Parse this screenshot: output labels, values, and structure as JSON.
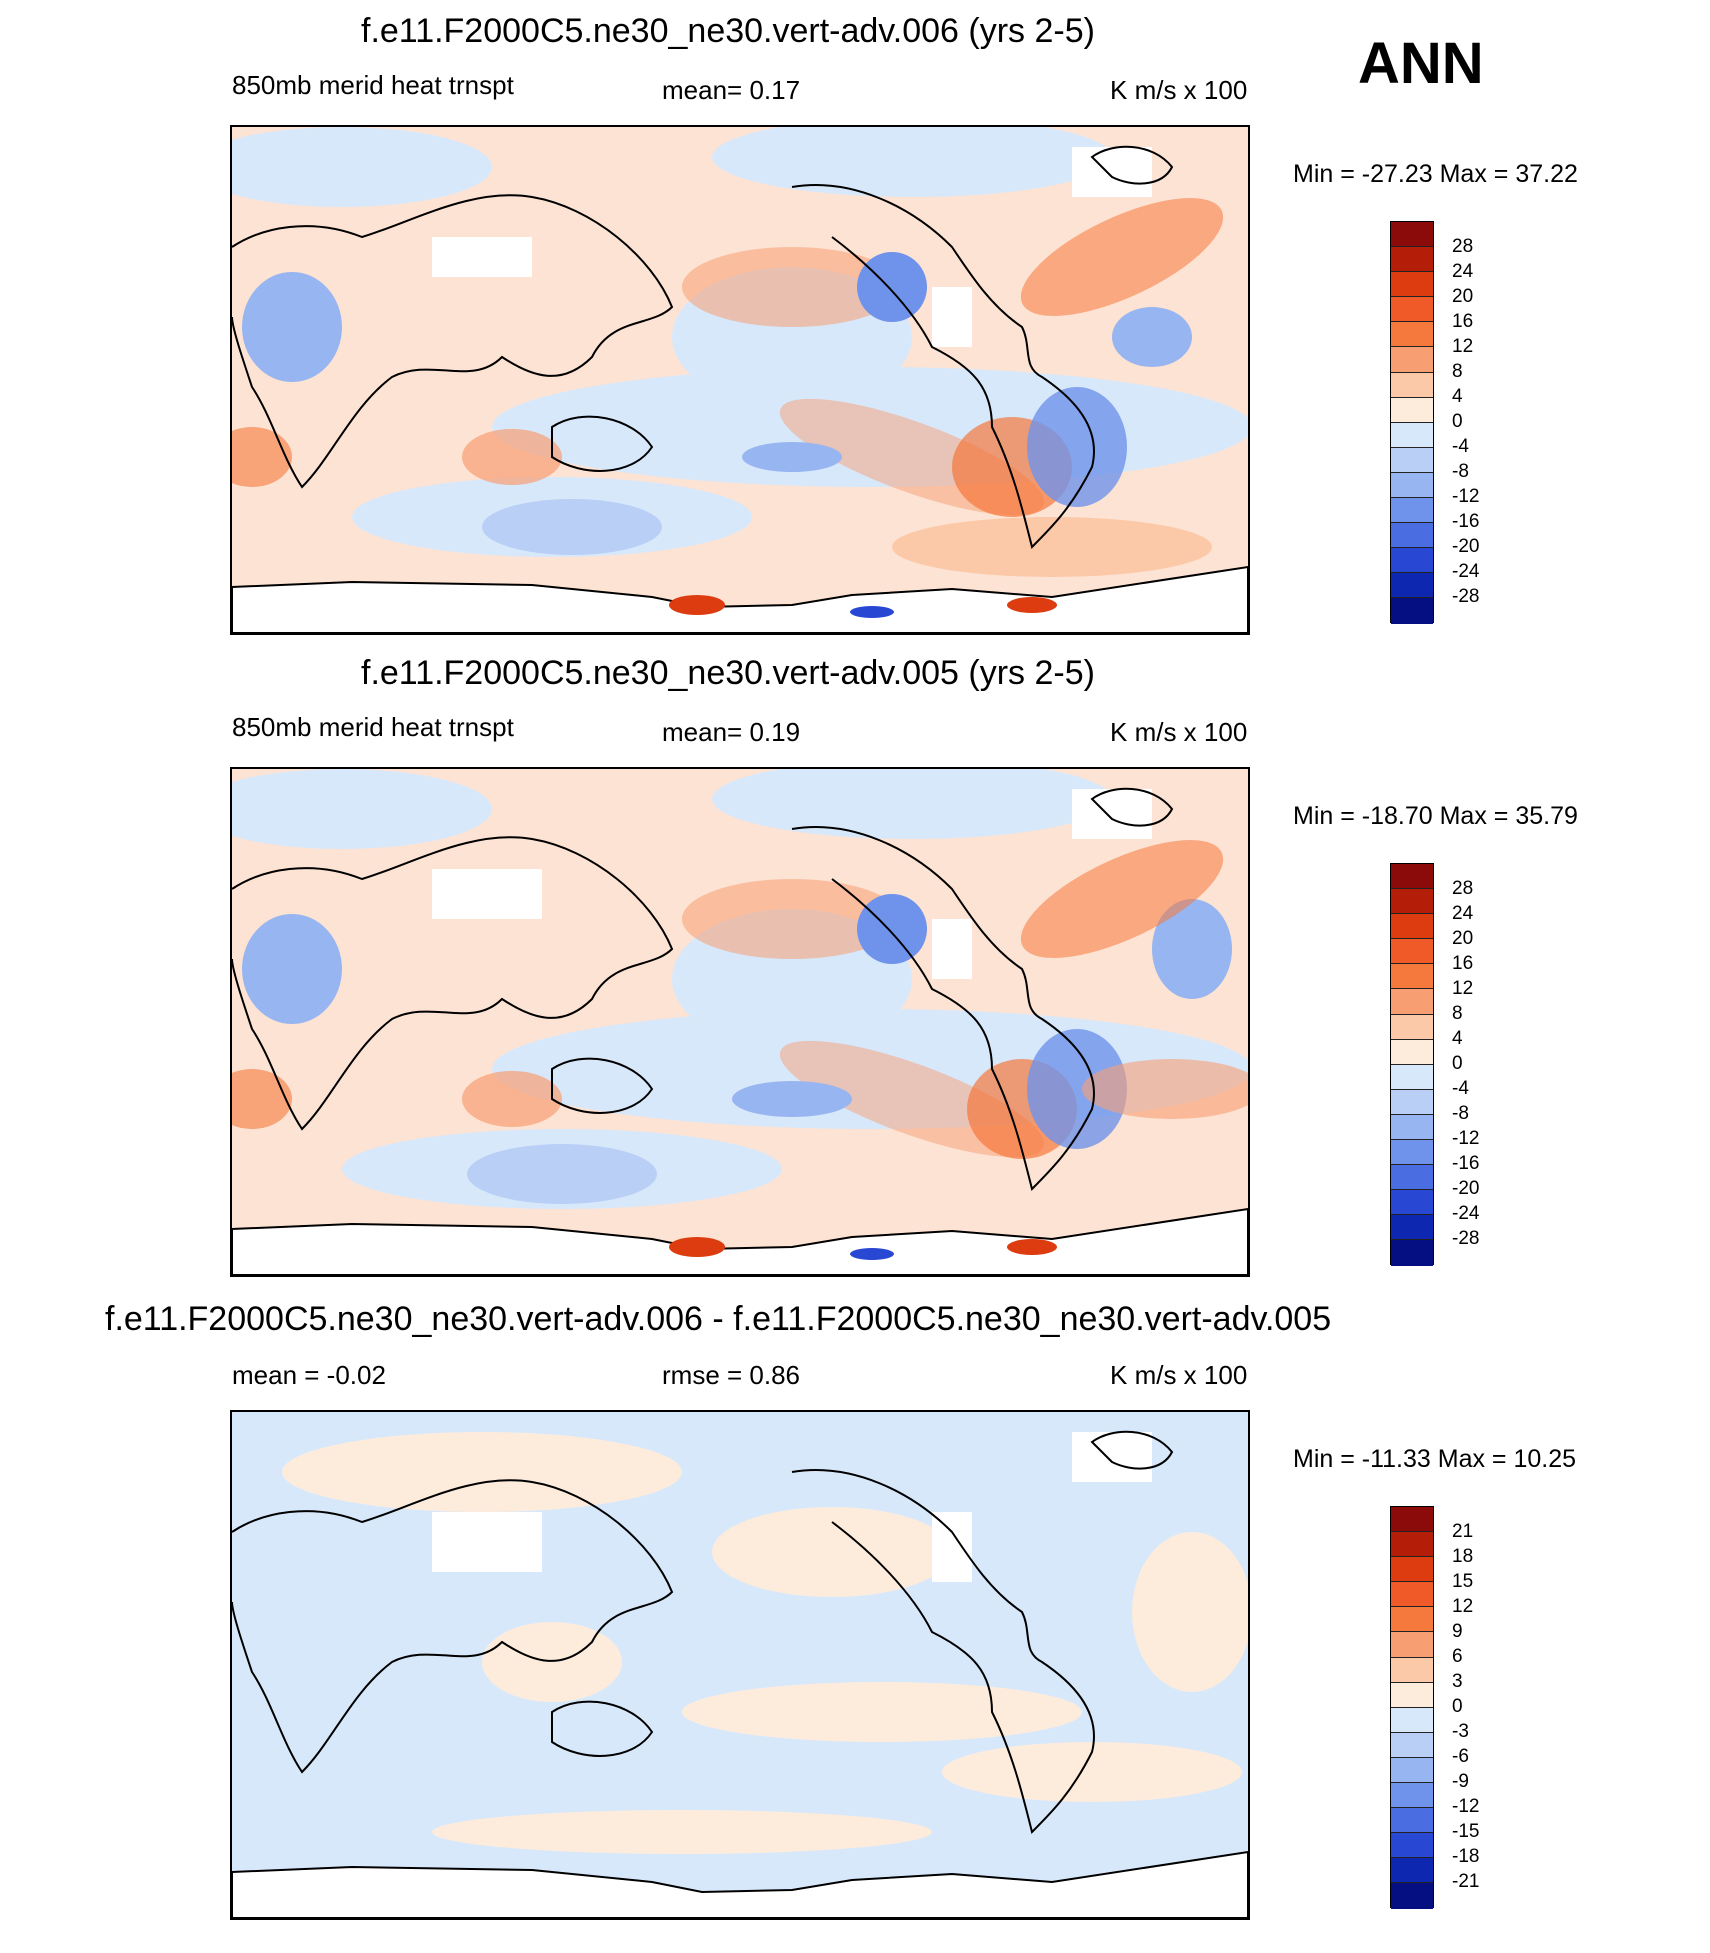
{
  "season": "ANN",
  "panels": [
    {
      "title": "f.e11.F2000C5.ne30_ne30.vert-adv.006 (yrs 2-5)",
      "left_label": "850mb merid heat trnspt",
      "center_label": "mean=   0.17",
      "units": "K m/s x 100",
      "minmax": "Min = -27.23 Max =  37.22",
      "chart_data": {
        "type": "heatmap",
        "variable": "850mb meridional heat transport",
        "mean": 0.17,
        "min": -27.23,
        "max": 37.22,
        "units": "K m/s x 100",
        "colorbar_levels": [
          "28",
          "24",
          "20",
          "16",
          "12",
          "8",
          "4",
          "0",
          "-4",
          "-8",
          "-12",
          "-16",
          "-20",
          "-24",
          "-28"
        ]
      }
    },
    {
      "title": "f.e11.F2000C5.ne30_ne30.vert-adv.005 (yrs 2-5)",
      "left_label": "850mb merid heat trnspt",
      "center_label": "mean=   0.19",
      "units": "K m/s x 100",
      "minmax": "Min = -18.70 Max =  35.79",
      "chart_data": {
        "type": "heatmap",
        "variable": "850mb meridional heat transport",
        "mean": 0.19,
        "min": -18.7,
        "max": 35.79,
        "units": "K m/s x 100",
        "colorbar_levels": [
          "28",
          "24",
          "20",
          "16",
          "12",
          "8",
          "4",
          "0",
          "-4",
          "-8",
          "-12",
          "-16",
          "-20",
          "-24",
          "-28"
        ]
      }
    },
    {
      "title": "f.e11.F2000C5.ne30_ne30.vert-adv.006 - f.e11.F2000C5.ne30_ne30.vert-adv.005",
      "left_label": "mean =  -0.02",
      "center_label": "rmse =   0.86",
      "units": "K m/s x 100",
      "minmax": "Min = -11.33 Max =  10.25",
      "chart_data": {
        "type": "heatmap",
        "variable": "difference",
        "mean": -0.02,
        "rmse": 0.86,
        "min": -11.33,
        "max": 10.25,
        "units": "K m/s x 100",
        "colorbar_levels": [
          "21",
          "18",
          "15",
          "12",
          "9",
          "6",
          "3",
          "0",
          "-3",
          "-6",
          "-9",
          "-12",
          "-15",
          "-18",
          "-21"
        ]
      }
    }
  ],
  "colorbar_colors": [
    "#8b0a0a",
    "#b41e08",
    "#dc3c0f",
    "#f05a28",
    "#f5783c",
    "#f89e73",
    "#fbc8a8",
    "#fdecdc",
    "#d8e8fb",
    "#b9cff5",
    "#97b5f0",
    "#6f93ea",
    "#4a6de2",
    "#2848d3",
    "#0e27b0",
    "#050f82"
  ]
}
